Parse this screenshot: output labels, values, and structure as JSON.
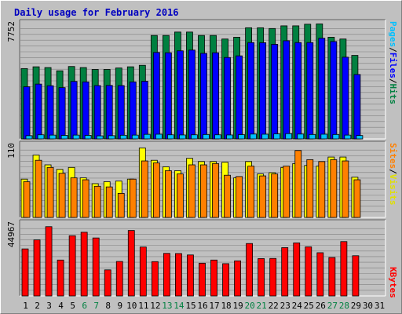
{
  "chart_data": {
    "type": "bar",
    "title": "Daily usage for February 2016",
    "days": [
      "1",
      "2",
      "3",
      "4",
      "5",
      "6",
      "7",
      "8",
      "9",
      "10",
      "11",
      "12",
      "13",
      "14",
      "15",
      "16",
      "17",
      "18",
      "19",
      "20",
      "21",
      "22",
      "23",
      "24",
      "25",
      "26",
      "27",
      "28",
      "29",
      "30",
      "31"
    ],
    "weekend_days": [
      "6",
      "7",
      "13",
      "14",
      "20",
      "21",
      "27",
      "28"
    ],
    "panels": [
      {
        "id": "pfh",
        "ymax_label": "7752",
        "ymax": 7752,
        "right_label": [
          "Pages",
          "/",
          "Files",
          "/",
          "Hits"
        ],
        "series": [
          {
            "name": "Hits",
            "color": "#008040",
            "values": [
              4760,
              4880,
              4830,
              4610,
              4900,
              4830,
              4700,
              4700,
              4800,
              4880,
              4980,
              7000,
              7000,
              7230,
              7230,
              7000,
              7000,
              6760,
              6880,
              7520,
              7520,
              7470,
              7650,
              7650,
              7760,
              7780,
              6880,
              6760,
              5650
            ]
          },
          {
            "name": "Files",
            "color": "#0000ff",
            "values": [
              3530,
              3710,
              3600,
              3470,
              3890,
              3860,
              3610,
              3620,
              3610,
              3860,
              3900,
              5850,
              5830,
              5960,
              6010,
              5790,
              5830,
              5510,
              5620,
              6520,
              6510,
              6400,
              6640,
              6520,
              6520,
              6810,
              6590,
              5530,
              4360
            ]
          },
          {
            "name": "Pages",
            "color": "#00c0ff",
            "values": [
              220,
              280,
              260,
              240,
              260,
              240,
              210,
              220,
              250,
              260,
              310,
              320,
              280,
              270,
              280,
              300,
              280,
              270,
              290,
              330,
              320,
              340,
              360,
              330,
              300,
              320,
              300,
              260,
              230
            ]
          }
        ]
      },
      {
        "id": "sv",
        "ymax_label": "110",
        "ymax": 110,
        "right_label": [
          "Sites",
          "/",
          "Visits"
        ],
        "series": [
          {
            "name": "Visits",
            "color": "#ffff00",
            "values": [
              59,
              96,
              81,
              74,
              77,
              61,
              52,
              55,
              56,
              59,
              107,
              88,
              78,
              72,
              91,
              86,
              86,
              85,
              61,
              86,
              67,
              69,
              77,
              83,
              80,
              79,
              93,
              93,
              62
            ]
          },
          {
            "name": "Sites",
            "color": "#ff8000",
            "values": [
              55,
              88,
              77,
              68,
              61,
              58,
              48,
              47,
              37,
              59,
              87,
              84,
              72,
              67,
              81,
              81,
              83,
              65,
              63,
              79,
              64,
              67,
              79,
              103,
              89,
              86,
              89,
              87,
              58
            ]
          }
        ]
      },
      {
        "id": "kb",
        "ymax_label": "44967",
        "ymax": 44967,
        "right_label": [
          "KBytes"
        ],
        "series": [
          {
            "name": "KBytes",
            "color": "#ff0000",
            "values": [
              29600,
              35300,
              43600,
              22600,
              37900,
              40100,
              36500,
              16400,
              21700,
              41200,
              30800,
              21600,
              26800,
              26700,
              25800,
              20600,
              22600,
              20300,
              22100,
              33000,
              23500,
              23600,
              30400,
              33400,
              30900,
              27200,
              24200,
              34200,
              25300
            ]
          }
        ]
      }
    ]
  }
}
